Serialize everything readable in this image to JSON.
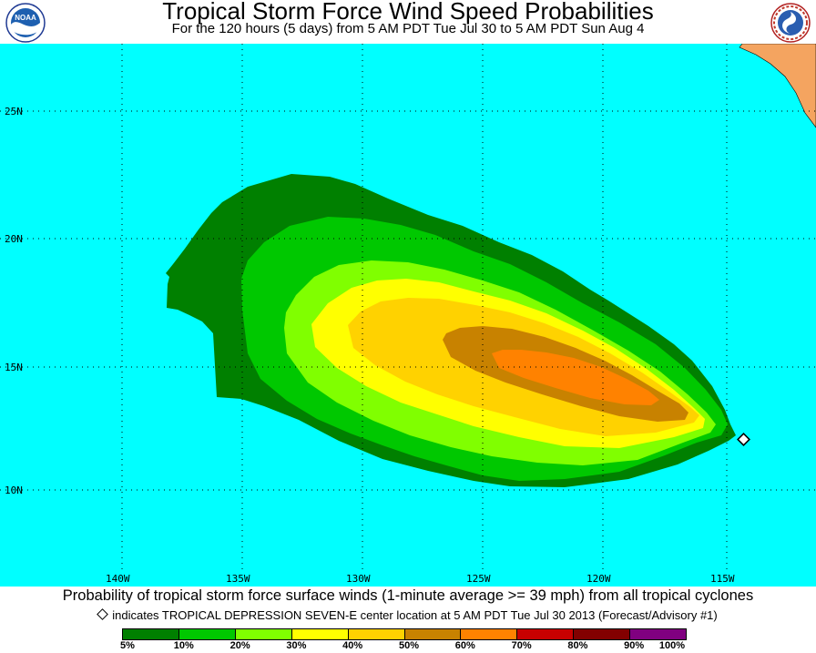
{
  "header": {
    "title": "Tropical Storm Force Wind Speed Probabilities",
    "subtitle": "For the 120 hours (5 days) from 5 AM PDT Tue Jul 30 to 5 AM PDT Sun Aug 4",
    "logo_left": "NOAA",
    "logo_right": "NATIONAL WEATHER SERVICE"
  },
  "map": {
    "ocean_color": "#00ffff",
    "land_color": "#f4a460",
    "lat_labels": [
      "25N",
      "20N",
      "15N",
      "10N"
    ],
    "lon_labels": [
      "140W",
      "135W",
      "130W",
      "125W",
      "120W",
      "115W"
    ],
    "storm_marker": "diamond-icon"
  },
  "footer": {
    "caption": "Probability of tropical storm force surface winds (1-minute average >= 39 mph) from all tropical cyclones",
    "note": "indicates TROPICAL DEPRESSION SEVEN-E center location at 5 AM PDT Tue Jul 30 2013 (Forecast/Advisory #1)"
  },
  "legend": {
    "colors": [
      "#008000",
      "#00c800",
      "#80ff00",
      "#ffff00",
      "#ffd200",
      "#c88200",
      "#ff8200",
      "#c80000",
      "#820000",
      "#800080"
    ],
    "labels": [
      "5%",
      "10%",
      "20%",
      "30%",
      "40%",
      "50%",
      "60%",
      "70%",
      "80%",
      "90%",
      "100%"
    ]
  }
}
